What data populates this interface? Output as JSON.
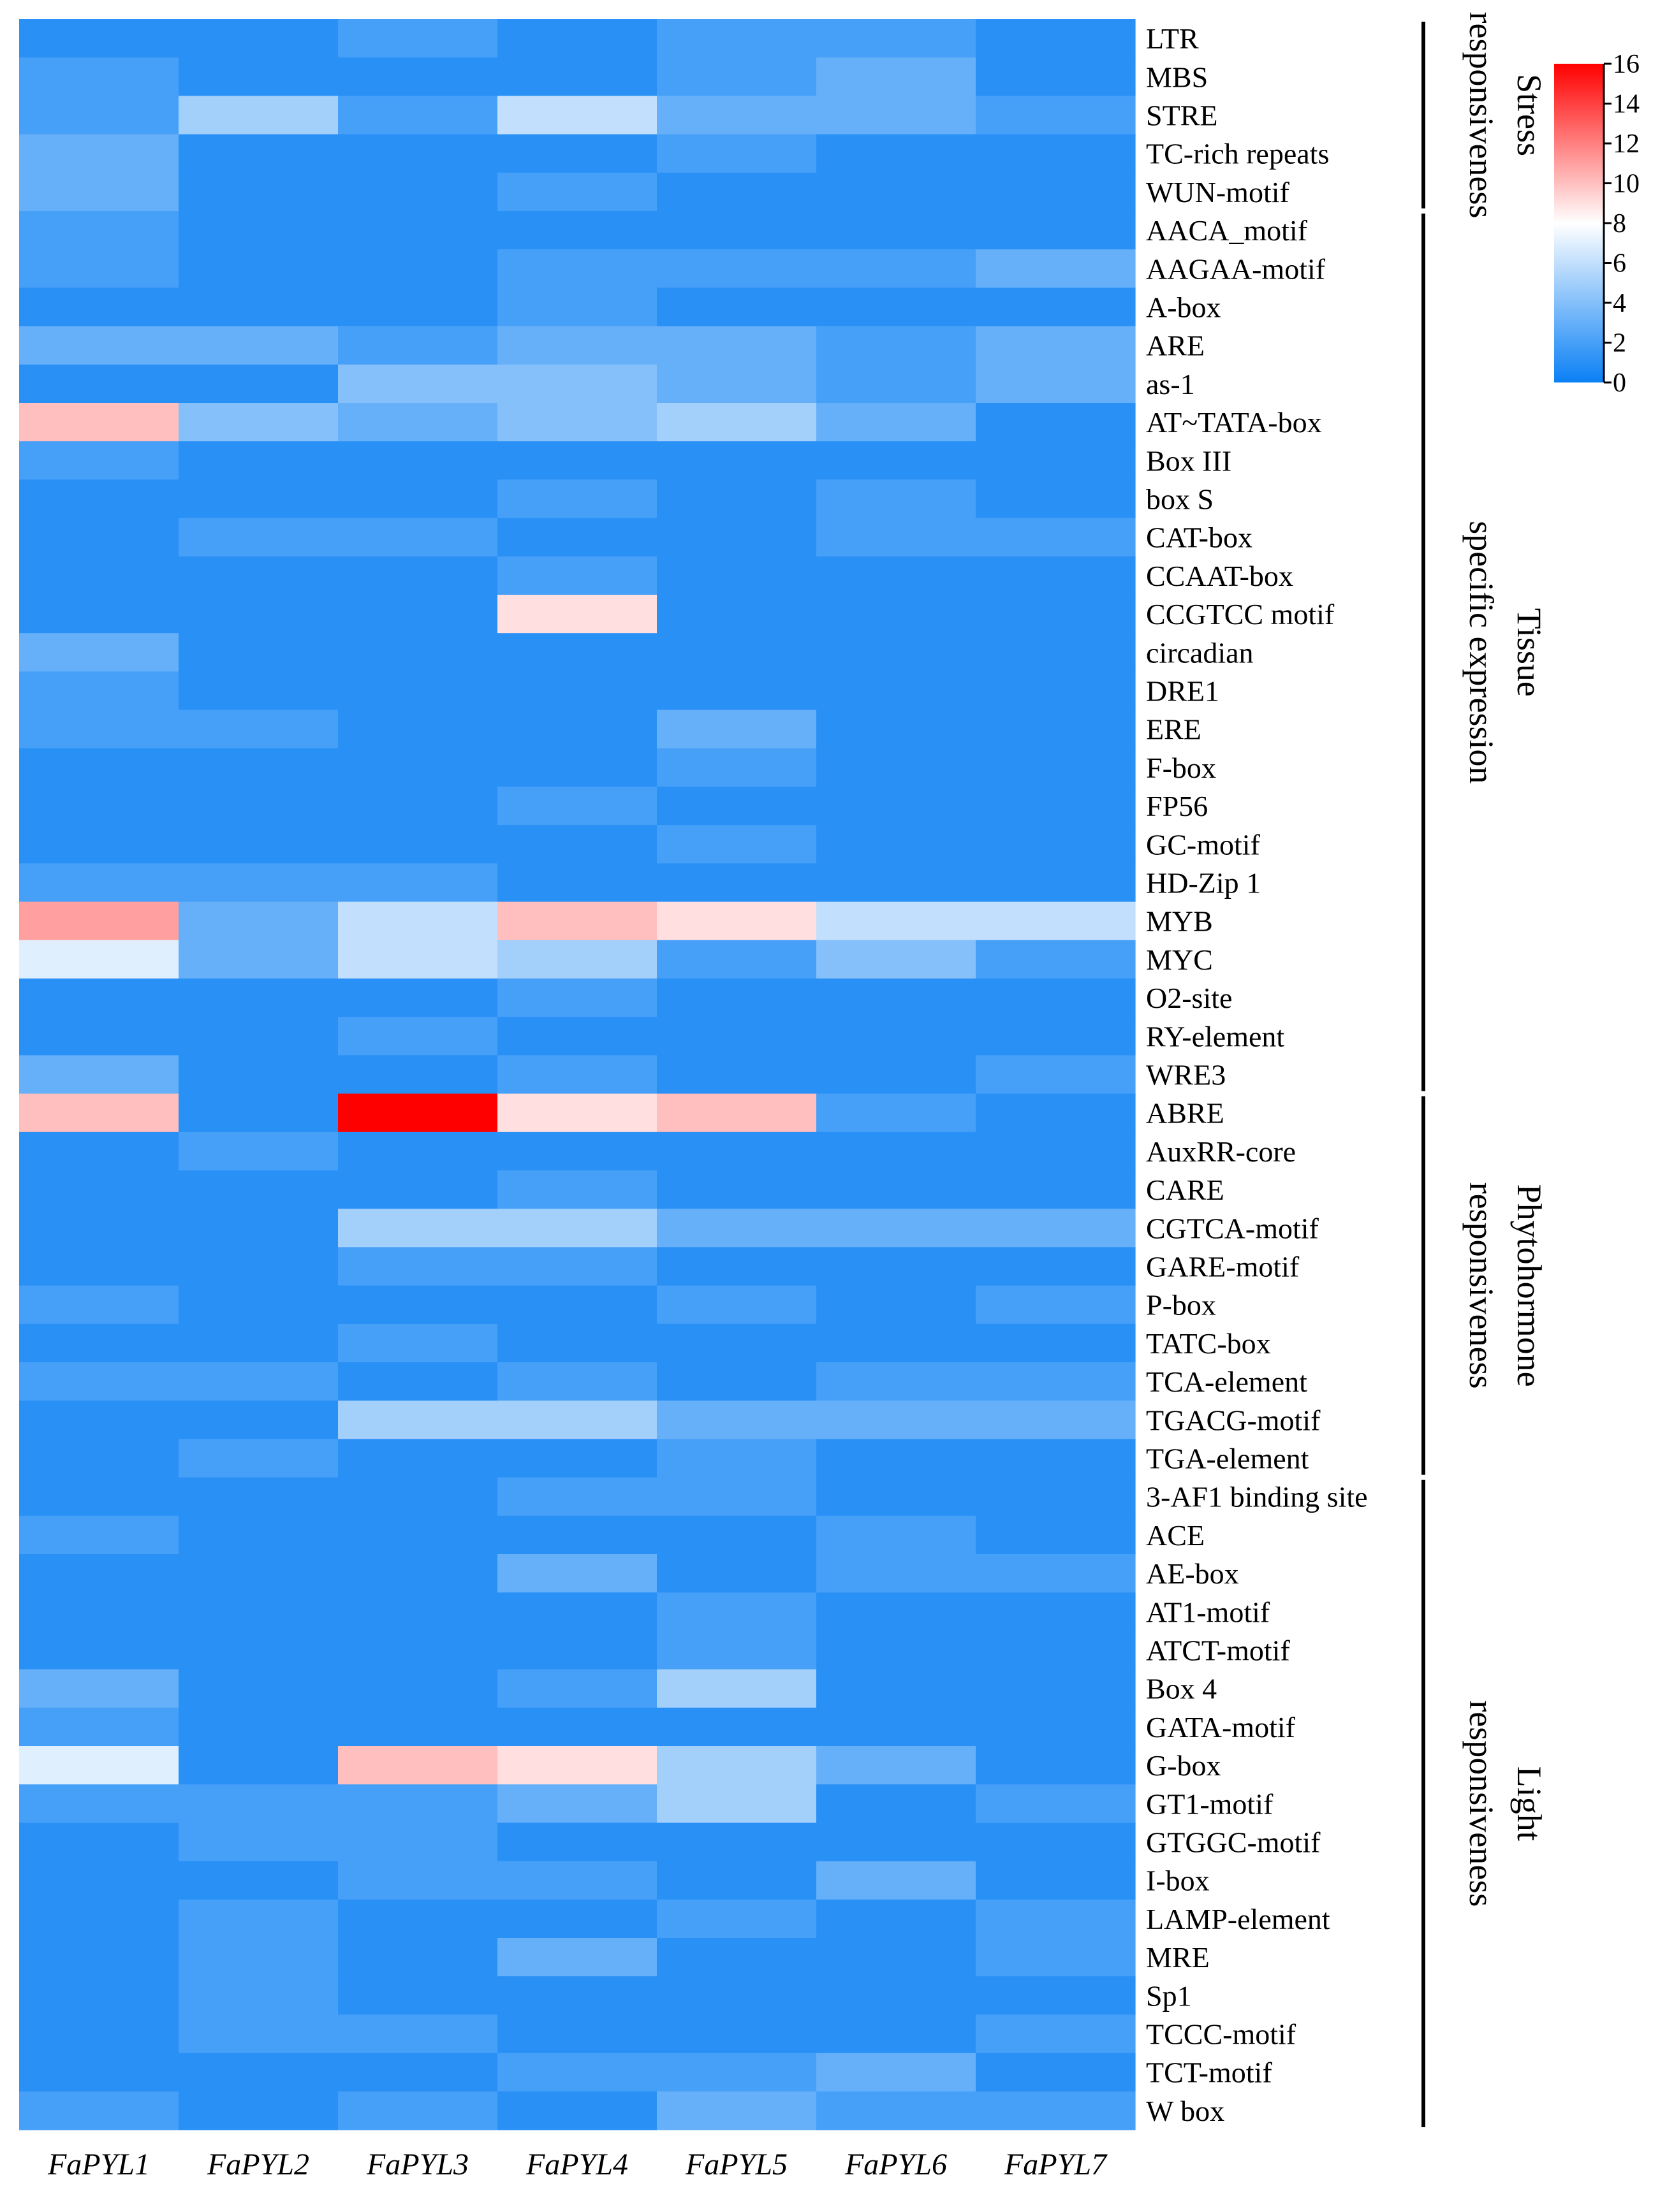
{
  "chart_data": {
    "type": "heatmap",
    "title": "",
    "columns": [
      "FaPYL1",
      "FaPYL2",
      "FaPYL3",
      "FaPYL4",
      "FaPYL5",
      "FaPYL6",
      "FaPYL7"
    ],
    "rows": [
      "LTR",
      "MBS",
      "STRE",
      "TC-rich repeats",
      "WUN-motif",
      "AACA_motif",
      "AAGAA-motif",
      "A-box",
      "ARE",
      "as-1",
      "AT~TATA-box",
      "Box III",
      "box S",
      "CAT-box",
      "CCAAT-box",
      "CCGTCC motif",
      "circadian",
      "DRE1",
      "ERE",
      "F-box",
      "FP56",
      "GC-motif",
      "HD-Zip 1",
      "MYB",
      "MYC",
      "O2-site",
      "RY-element",
      "WRE3",
      "ABRE",
      "AuxRR-core",
      "CARE",
      "CGTCA-motif",
      "GARE-motif",
      "P-box",
      "TATC-box",
      "TCA-element",
      "TGACG-motif",
      "TGA-element",
      "3-AF1 binding site",
      "ACE",
      "AE-box",
      "AT1-motif",
      "ATCT-motif",
      "Box 4",
      "GATA-motif",
      "G-box",
      "GT1-motif",
      "GTGGC-motif",
      "I-box",
      "LAMP-element",
      "MRE",
      "Sp1",
      "TCCC-motif",
      "TCT-motif",
      "W box"
    ],
    "values": [
      [
        1,
        1,
        2,
        1,
        2,
        2,
        1
      ],
      [
        2,
        1,
        1,
        1,
        2,
        3,
        1
      ],
      [
        2,
        5,
        2,
        6,
        3,
        3,
        2
      ],
      [
        3,
        1,
        1,
        1,
        2,
        1,
        1
      ],
      [
        3,
        1,
        1,
        2,
        1,
        1,
        1
      ],
      [
        2,
        1,
        1,
        1,
        1,
        1,
        1
      ],
      [
        2,
        1,
        1,
        2,
        2,
        2,
        3
      ],
      [
        1,
        1,
        1,
        2,
        1,
        1,
        1
      ],
      [
        3,
        3,
        2,
        3,
        3,
        2,
        3
      ],
      [
        1,
        1,
        4,
        4,
        3,
        2,
        3
      ],
      [
        10,
        4,
        3,
        4,
        5,
        3,
        1
      ],
      [
        2,
        1,
        1,
        1,
        1,
        1,
        1
      ],
      [
        1,
        1,
        1,
        2,
        1,
        2,
        1
      ],
      [
        1,
        2,
        2,
        1,
        1,
        2,
        2
      ],
      [
        1,
        1,
        1,
        2,
        1,
        1,
        1
      ],
      [
        1,
        1,
        1,
        9,
        1,
        1,
        1
      ],
      [
        3,
        1,
        1,
        1,
        1,
        1,
        1
      ],
      [
        2,
        1,
        1,
        1,
        1,
        1,
        1
      ],
      [
        2,
        2,
        1,
        1,
        3,
        1,
        1
      ],
      [
        1,
        1,
        1,
        1,
        2,
        1,
        1
      ],
      [
        1,
        1,
        1,
        2,
        1,
        1,
        1
      ],
      [
        1,
        1,
        1,
        1,
        2,
        1,
        1
      ],
      [
        2,
        2,
        2,
        1,
        1,
        1,
        1
      ],
      [
        11,
        3,
        6,
        10,
        9,
        6,
        6
      ],
      [
        7,
        3,
        6,
        5,
        2,
        4,
        2
      ],
      [
        1,
        1,
        1,
        2,
        1,
        1,
        1
      ],
      [
        1,
        1,
        2,
        1,
        1,
        1,
        1
      ],
      [
        3,
        1,
        1,
        2,
        1,
        1,
        2
      ],
      [
        10,
        1,
        16,
        9,
        10,
        2,
        1
      ],
      [
        1,
        2,
        1,
        1,
        1,
        1,
        1
      ],
      [
        1,
        1,
        1,
        2,
        1,
        1,
        1
      ],
      [
        1,
        1,
        5,
        5,
        3,
        3,
        3
      ],
      [
        1,
        1,
        2,
        2,
        1,
        1,
        1
      ],
      [
        2,
        1,
        1,
        1,
        2,
        1,
        2
      ],
      [
        1,
        1,
        2,
        1,
        1,
        1,
        1
      ],
      [
        2,
        2,
        1,
        2,
        1,
        2,
        2
      ],
      [
        1,
        1,
        5,
        5,
        3,
        3,
        3
      ],
      [
        1,
        2,
        1,
        1,
        2,
        1,
        1
      ],
      [
        1,
        1,
        1,
        2,
        2,
        1,
        1
      ],
      [
        2,
        1,
        1,
        1,
        1,
        2,
        1
      ],
      [
        1,
        1,
        1,
        3,
        1,
        2,
        2
      ],
      [
        1,
        1,
        1,
        1,
        2,
        1,
        1
      ],
      [
        1,
        1,
        1,
        1,
        2,
        1,
        1
      ],
      [
        3,
        1,
        1,
        2,
        5,
        1,
        1
      ],
      [
        2,
        1,
        1,
        1,
        1,
        1,
        1
      ],
      [
        7,
        1,
        10,
        9,
        5,
        3,
        1
      ],
      [
        2,
        2,
        2,
        3,
        5,
        1,
        2
      ],
      [
        1,
        2,
        2,
        1,
        1,
        1,
        1
      ],
      [
        1,
        1,
        2,
        2,
        1,
        3,
        1
      ],
      [
        1,
        2,
        1,
        1,
        2,
        1,
        2
      ],
      [
        1,
        2,
        1,
        3,
        1,
        1,
        2
      ],
      [
        1,
        2,
        1,
        1,
        1,
        1,
        1
      ],
      [
        1,
        2,
        2,
        1,
        1,
        1,
        2
      ],
      [
        1,
        1,
        1,
        2,
        2,
        3,
        1
      ],
      [
        2,
        1,
        2,
        1,
        3,
        2,
        2
      ]
    ],
    "colorbar": {
      "min": 0,
      "max": 16,
      "ticks": [
        "0",
        "2",
        "4",
        "6",
        "8",
        "10",
        "12",
        "14",
        "16"
      ]
    },
    "colors": {
      "low": "#0a80f5",
      "mid": "#ffffff",
      "high": "#ff0000"
    },
    "groups": [
      {
        "lines": [
          "Stress",
          "responsiveness"
        ],
        "start": 0,
        "end": 4
      },
      {
        "lines": [
          "Tissue",
          "specific expression"
        ],
        "start": 5,
        "end": 27
      },
      {
        "lines": [
          "Phytohormone",
          "responsiveness"
        ],
        "start": 28,
        "end": 37
      },
      {
        "lines": [
          "Light",
          "responsiveness"
        ],
        "start": 38,
        "end": 54
      }
    ]
  }
}
